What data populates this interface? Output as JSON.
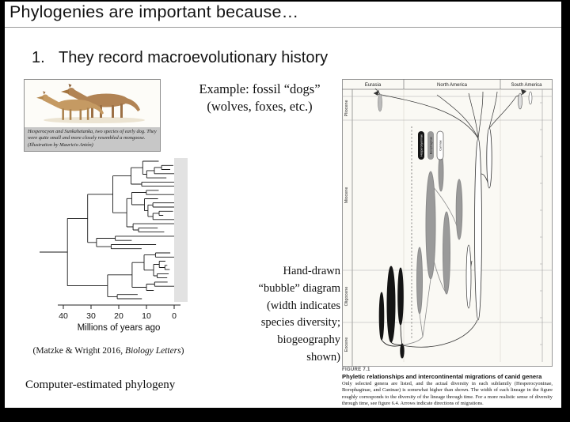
{
  "slide": {
    "title": "Phylogenies are important because…",
    "point_number": "1.",
    "point_text": "They record macroevolutionary history",
    "example_label": "Example: fossil “dogs”\n(wolves, foxes, etc.)",
    "handdrawn_label": "Hand-drawn\n“bubble” diagram\n(width indicates\nspecies diversity;\nbiogeography\nshown)",
    "computer_label": "Computer-estimated phylogeny"
  },
  "left_figure": {
    "illustration_caption": "Hesperocyon and Sunkahetanka, two species of early dog. They were quite small and more closely resembled a mongoose. (Illustration by Mauricio Antón)",
    "axis_ticks": [
      "40",
      "30",
      "20",
      "10",
      "0"
    ],
    "axis_label": "Millions of years ago",
    "citation_prefix": "(Matzke & Wright 2016, ",
    "citation_journal": "Biology Letters",
    "citation_suffix": ")"
  },
  "right_figure": {
    "regions": [
      "Eurasia",
      "North America",
      "South America"
    ],
    "epochs": [
      "Pliocene",
      "Miocene",
      "Oligocene",
      "Eocene"
    ],
    "legend": [
      "Hesperocyoninae",
      "Borophaginae",
      "Caninae"
    ],
    "caption": {
      "figure_label": "FIGURE 7.1",
      "title": "Phyletic relationships and intercontinental migrations of canid genera",
      "body": "Only selected genera are listed, and the actual diversity in each subfamily (Hesperocyoninae, Borophaginae, and Caninae) is somewhat higher than shown. The width of each lineage in the figure roughly corresponds to the diversity of the lineage through time. For a more realistic sense of diversity through time, see figure 6.4. Arrows indicate directions of migrations."
    }
  }
}
